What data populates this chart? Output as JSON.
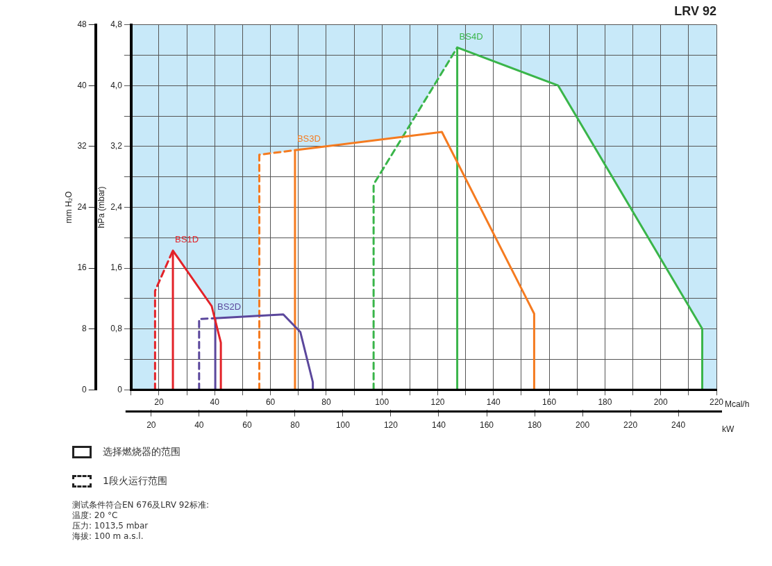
{
  "chart_data": {
    "type": "line",
    "title": "LRV 92",
    "xlabel": "Mcal/h",
    "x2label": "kW",
    "ylabel": "hPa (mbar)",
    "y2label": "mm H₂O",
    "xlim": [
      10,
      220
    ],
    "xticks": [
      {
        "value": 10,
        "label": null
      },
      20,
      {
        "value": 30,
        "label": null
      },
      40,
      {
        "value": 50,
        "label": null
      },
      60,
      {
        "value": 70,
        "label": null
      },
      80,
      {
        "value": 90,
        "label": null
      },
      100,
      {
        "value": 110,
        "label": null
      },
      120,
      {
        "value": 130,
        "label": null
      },
      140,
      {
        "value": 150,
        "label": null
      },
      160,
      {
        "value": 170,
        "label": null
      },
      180,
      {
        "value": 190,
        "label": null
      },
      200,
      {
        "value": 210,
        "label": null
      },
      220
    ],
    "x2lim": [
      11.6,
      255.9
    ],
    "x2ticks": [
      20,
      40,
      60,
      80,
      100,
      120,
      140,
      160,
      180,
      200,
      220,
      240
    ],
    "ylim": [
      0,
      4.8
    ],
    "yticks": [
      0,
      {
        "value": 0.4,
        "label": null
      },
      {
        "value": 0.8,
        "label": "0,8"
      },
      {
        "value": 1.2,
        "label": null
      },
      {
        "value": 1.6,
        "label": "1,6"
      },
      {
        "value": 2.0,
        "label": null
      },
      {
        "value": 2.4,
        "label": "2,4"
      },
      {
        "value": 2.8,
        "label": null
      },
      {
        "value": 3.2,
        "label": "3,2"
      },
      {
        "value": 3.6,
        "label": null
      },
      {
        "value": 4.0,
        "label": "4,0"
      },
      {
        "value": 4.4,
        "label": null
      },
      {
        "value": 4.8,
        "label": "4,8"
      }
    ],
    "y2lim": [
      0,
      48
    ],
    "y2ticks": [
      0,
      8,
      16,
      24,
      32,
      40,
      48
    ],
    "grid": true,
    "marker": "none",
    "bands": [
      {
        "axis": "y",
        "from": 0,
        "to": 4.8,
        "color": "#c8e9f9"
      }
    ],
    "series": [
      {
        "name": "BS1D",
        "color": "#e32228",
        "line_style": "dashed",
        "x": [
          18.6,
          18.6,
          25
        ],
        "values": [
          0,
          1.3,
          1.83
        ]
      },
      {
        "color": "#e32228",
        "line_style": "solid",
        "x": [
          25,
          25,
          38.9,
          42.2,
          42.2
        ],
        "values": [
          0,
          1.83,
          1.1,
          0.62,
          0
        ]
      },
      {
        "name": "BS2D",
        "color": "#5b479c",
        "line_style": "dashed",
        "x": [
          34.4,
          34.4,
          40.2
        ],
        "values": [
          0,
          0.93,
          0.94
        ]
      },
      {
        "color": "#5b479c",
        "line_style": "solid",
        "x": [
          40.2,
          40.2,
          64.6,
          70.7,
          75.2,
          75.2
        ],
        "values": [
          0,
          0.94,
          0.99,
          0.76,
          0.1,
          0
        ]
      },
      {
        "name": "BS3D",
        "color": "#f57b20",
        "line_style": "dashed",
        "x": [
          56,
          56,
          68.8
        ],
        "values": [
          0,
          3.09,
          3.15
        ]
      },
      {
        "color": "#f57b20",
        "line_style": "solid",
        "x": [
          68.8,
          68.8,
          121.5,
          154.6,
          154.6
        ],
        "values": [
          0,
          3.15,
          3.39,
          1.0,
          0
        ]
      },
      {
        "name": "BS4D",
        "color": "#3ab54a",
        "line_style": "dashed",
        "x": [
          97,
          97,
          127
        ],
        "values": [
          0,
          2.7,
          4.5
        ]
      },
      {
        "color": "#3ab54a",
        "line_style": "solid",
        "x": [
          127,
          127,
          163.2,
          214.9,
          214.9
        ],
        "values": [
          0,
          4.5,
          4.0,
          0.8,
          0
        ]
      }
    ],
    "annotations": [
      "选择燃烧器的范围",
      "1段火运行范围",
      "测试条件符合EN 676及LRV 92标准:",
      "温度: 20 °C",
      "压力: 1013,5 mbar",
      "海拔: 100 m a.s.l."
    ]
  }
}
